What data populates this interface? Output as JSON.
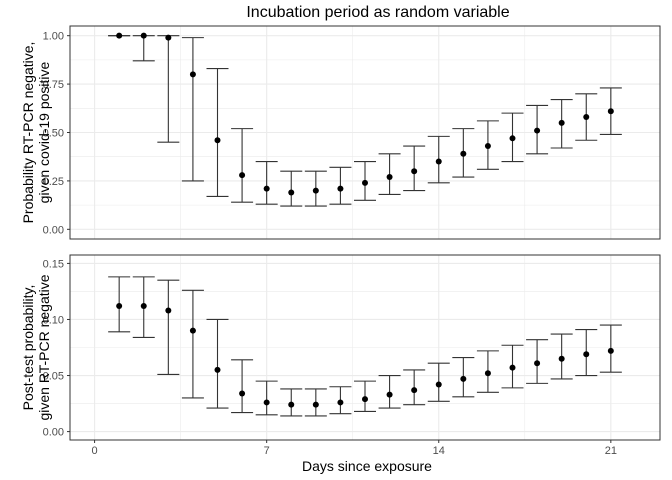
{
  "title": "Incubation period as random variable",
  "chart_data": [
    {
      "type": "scatter",
      "panel": "top",
      "title": "Incubation period as random variable",
      "xlabel": "Days since exposure",
      "ylabel_lines": [
        "Probability RT-PCR negative,",
        "given covid-19 positive"
      ],
      "xlim": [
        -1,
        23
      ],
      "ylim": [
        -0.05,
        1.05
      ],
      "xticks": [
        0,
        7,
        14,
        21
      ],
      "yticks": [
        0.0,
        0.25,
        0.5,
        0.75,
        1.0
      ],
      "ytick_labels": [
        "0.00",
        "0.25",
        "0.50",
        "0.75",
        "1.00"
      ],
      "grid": true,
      "legend": "none",
      "x": [
        1,
        2,
        3,
        4,
        5,
        6,
        7,
        8,
        9,
        10,
        11,
        12,
        13,
        14,
        15,
        16,
        17,
        18,
        19,
        20,
        21
      ],
      "y": [
        1.0,
        1.0,
        0.99,
        0.8,
        0.46,
        0.28,
        0.21,
        0.19,
        0.2,
        0.21,
        0.24,
        0.27,
        0.3,
        0.35,
        0.39,
        0.43,
        0.47,
        0.51,
        0.55,
        0.58,
        0.61
      ],
      "lower": [
        1.0,
        0.87,
        0.45,
        0.25,
        0.17,
        0.14,
        0.13,
        0.12,
        0.12,
        0.13,
        0.15,
        0.18,
        0.2,
        0.24,
        0.27,
        0.31,
        0.35,
        0.39,
        0.42,
        0.46,
        0.49
      ],
      "upper": [
        1.0,
        1.0,
        1.0,
        0.99,
        0.83,
        0.52,
        0.35,
        0.3,
        0.3,
        0.32,
        0.35,
        0.39,
        0.43,
        0.48,
        0.52,
        0.56,
        0.6,
        0.64,
        0.67,
        0.7,
        0.73
      ]
    },
    {
      "type": "scatter",
      "panel": "bottom",
      "xlabel": "Days since exposure",
      "ylabel_lines": [
        "Post-test probability,",
        "given RT-PCR negative"
      ],
      "xlim": [
        -1,
        23
      ],
      "ylim": [
        -0.0075,
        0.1575
      ],
      "xticks": [
        0,
        7,
        14,
        21
      ],
      "yticks": [
        0.0,
        0.05,
        0.1,
        0.15
      ],
      "ytick_labels": [
        "0.00",
        "0.05",
        "0.10",
        "0.15"
      ],
      "grid": true,
      "legend": "none",
      "x": [
        1,
        2,
        3,
        4,
        5,
        6,
        7,
        8,
        9,
        10,
        11,
        12,
        13,
        14,
        15,
        16,
        17,
        18,
        19,
        20,
        21
      ],
      "y": [
        0.112,
        0.112,
        0.108,
        0.09,
        0.055,
        0.034,
        0.026,
        0.024,
        0.024,
        0.026,
        0.029,
        0.033,
        0.037,
        0.042,
        0.047,
        0.052,
        0.057,
        0.061,
        0.065,
        0.069,
        0.072
      ],
      "lower": [
        0.089,
        0.084,
        0.051,
        0.03,
        0.021,
        0.017,
        0.015,
        0.014,
        0.014,
        0.016,
        0.018,
        0.021,
        0.024,
        0.027,
        0.031,
        0.035,
        0.039,
        0.043,
        0.047,
        0.05,
        0.053
      ],
      "upper": [
        0.138,
        0.138,
        0.135,
        0.126,
        0.1,
        0.064,
        0.045,
        0.038,
        0.038,
        0.04,
        0.045,
        0.05,
        0.055,
        0.061,
        0.066,
        0.072,
        0.077,
        0.082,
        0.087,
        0.091,
        0.095
      ]
    }
  ]
}
